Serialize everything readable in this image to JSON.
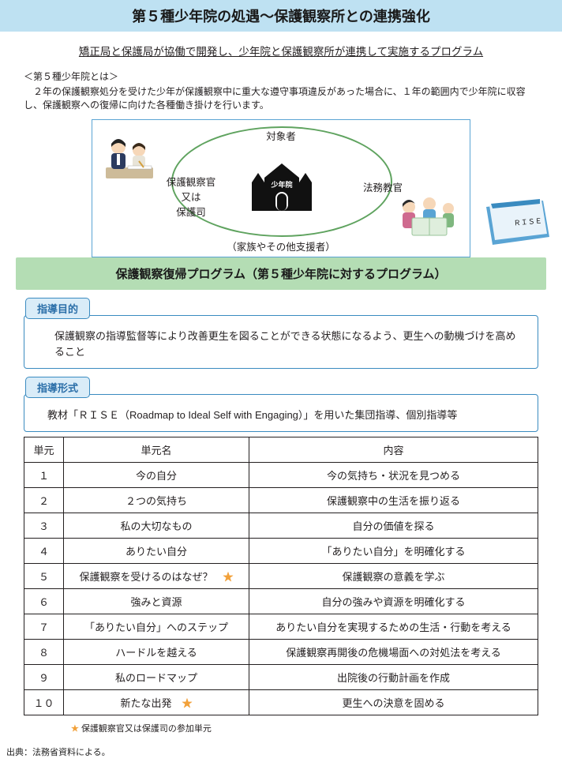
{
  "title": "第５種少年院の処遇～保護観察所との連携強化",
  "subtitle": "矯正局と保護局が協働で開発し、少年院と保護観察所が連携して実施するプログラム",
  "intro": {
    "heading": "＜第５種少年院とは＞",
    "body": "　２年の保護観察処分を受けた少年が保護観察中に重大な遵守事項違反があった場合に、１年の範囲内で少年院に収容し、保護観察への復帰に向けた各種働き掛けを行います。"
  },
  "diagram": {
    "top": "対象者",
    "left1": "保護観察官",
    "left2": "又は",
    "left3": "保護司",
    "right": "法務教官",
    "bottom": "（家族やその他支援者）",
    "center": "少年院",
    "rise_label": "ＲＩＳＥ"
  },
  "program_title": "保護観察復帰プログラム（第５種少年院に対するプログラム）",
  "sec1": {
    "tab": "指導目的",
    "text": "保護観察の指導監督等により改善更生を図ることができる状態になるよう、更生への動機づけを高めること"
  },
  "sec2": {
    "tab": "指導形式",
    "text": "教材「ＲＩＳＥ（Roadmap to Ideal Self with Engaging）」を用いた集団指導、個別指導等"
  },
  "table": {
    "h1": "単元",
    "h2": "単元名",
    "h3": "内容",
    "rows": [
      {
        "n": "１",
        "name": "今の自分",
        "star": false,
        "desc": "今の気持ち・状況を見つめる"
      },
      {
        "n": "２",
        "name": "２つの気持ち",
        "star": false,
        "desc": "保護観察中の生活を振り返る"
      },
      {
        "n": "３",
        "name": "私の大切なもの",
        "star": false,
        "desc": "自分の価値を探る"
      },
      {
        "n": "４",
        "name": "ありたい自分",
        "star": false,
        "desc": "「ありたい自分」を明確化する"
      },
      {
        "n": "５",
        "name": "保護観察を受けるのはなぜ？",
        "star": true,
        "desc": "保護観察の意義を学ぶ"
      },
      {
        "n": "６",
        "name": "強みと資源",
        "star": false,
        "desc": "自分の強みや資源を明確化する"
      },
      {
        "n": "７",
        "name": "「ありたい自分」へのステップ",
        "star": false,
        "desc": "ありたい自分を実現するための生活・行動を考える"
      },
      {
        "n": "８",
        "name": "ハードルを越える",
        "star": false,
        "desc": "保護観察再開後の危機場面への対処法を考える"
      },
      {
        "n": "９",
        "name": "私のロードマップ",
        "star": false,
        "desc": "出院後の行動計画を作成"
      },
      {
        "n": "１０",
        "name": "新たな出発",
        "star": true,
        "desc": "更生への決意を固める"
      }
    ]
  },
  "footnote_star": "★",
  "footnote": "保護観察官又は保護司の参加単元",
  "source": "出典：法務省資料による。",
  "colors": {
    "title_bg": "#bee1f2",
    "program_bg": "#b4ddb4",
    "box_border": "#3a8bc0",
    "tab_bg": "#d9ecf8",
    "star": "#f2a13a"
  }
}
